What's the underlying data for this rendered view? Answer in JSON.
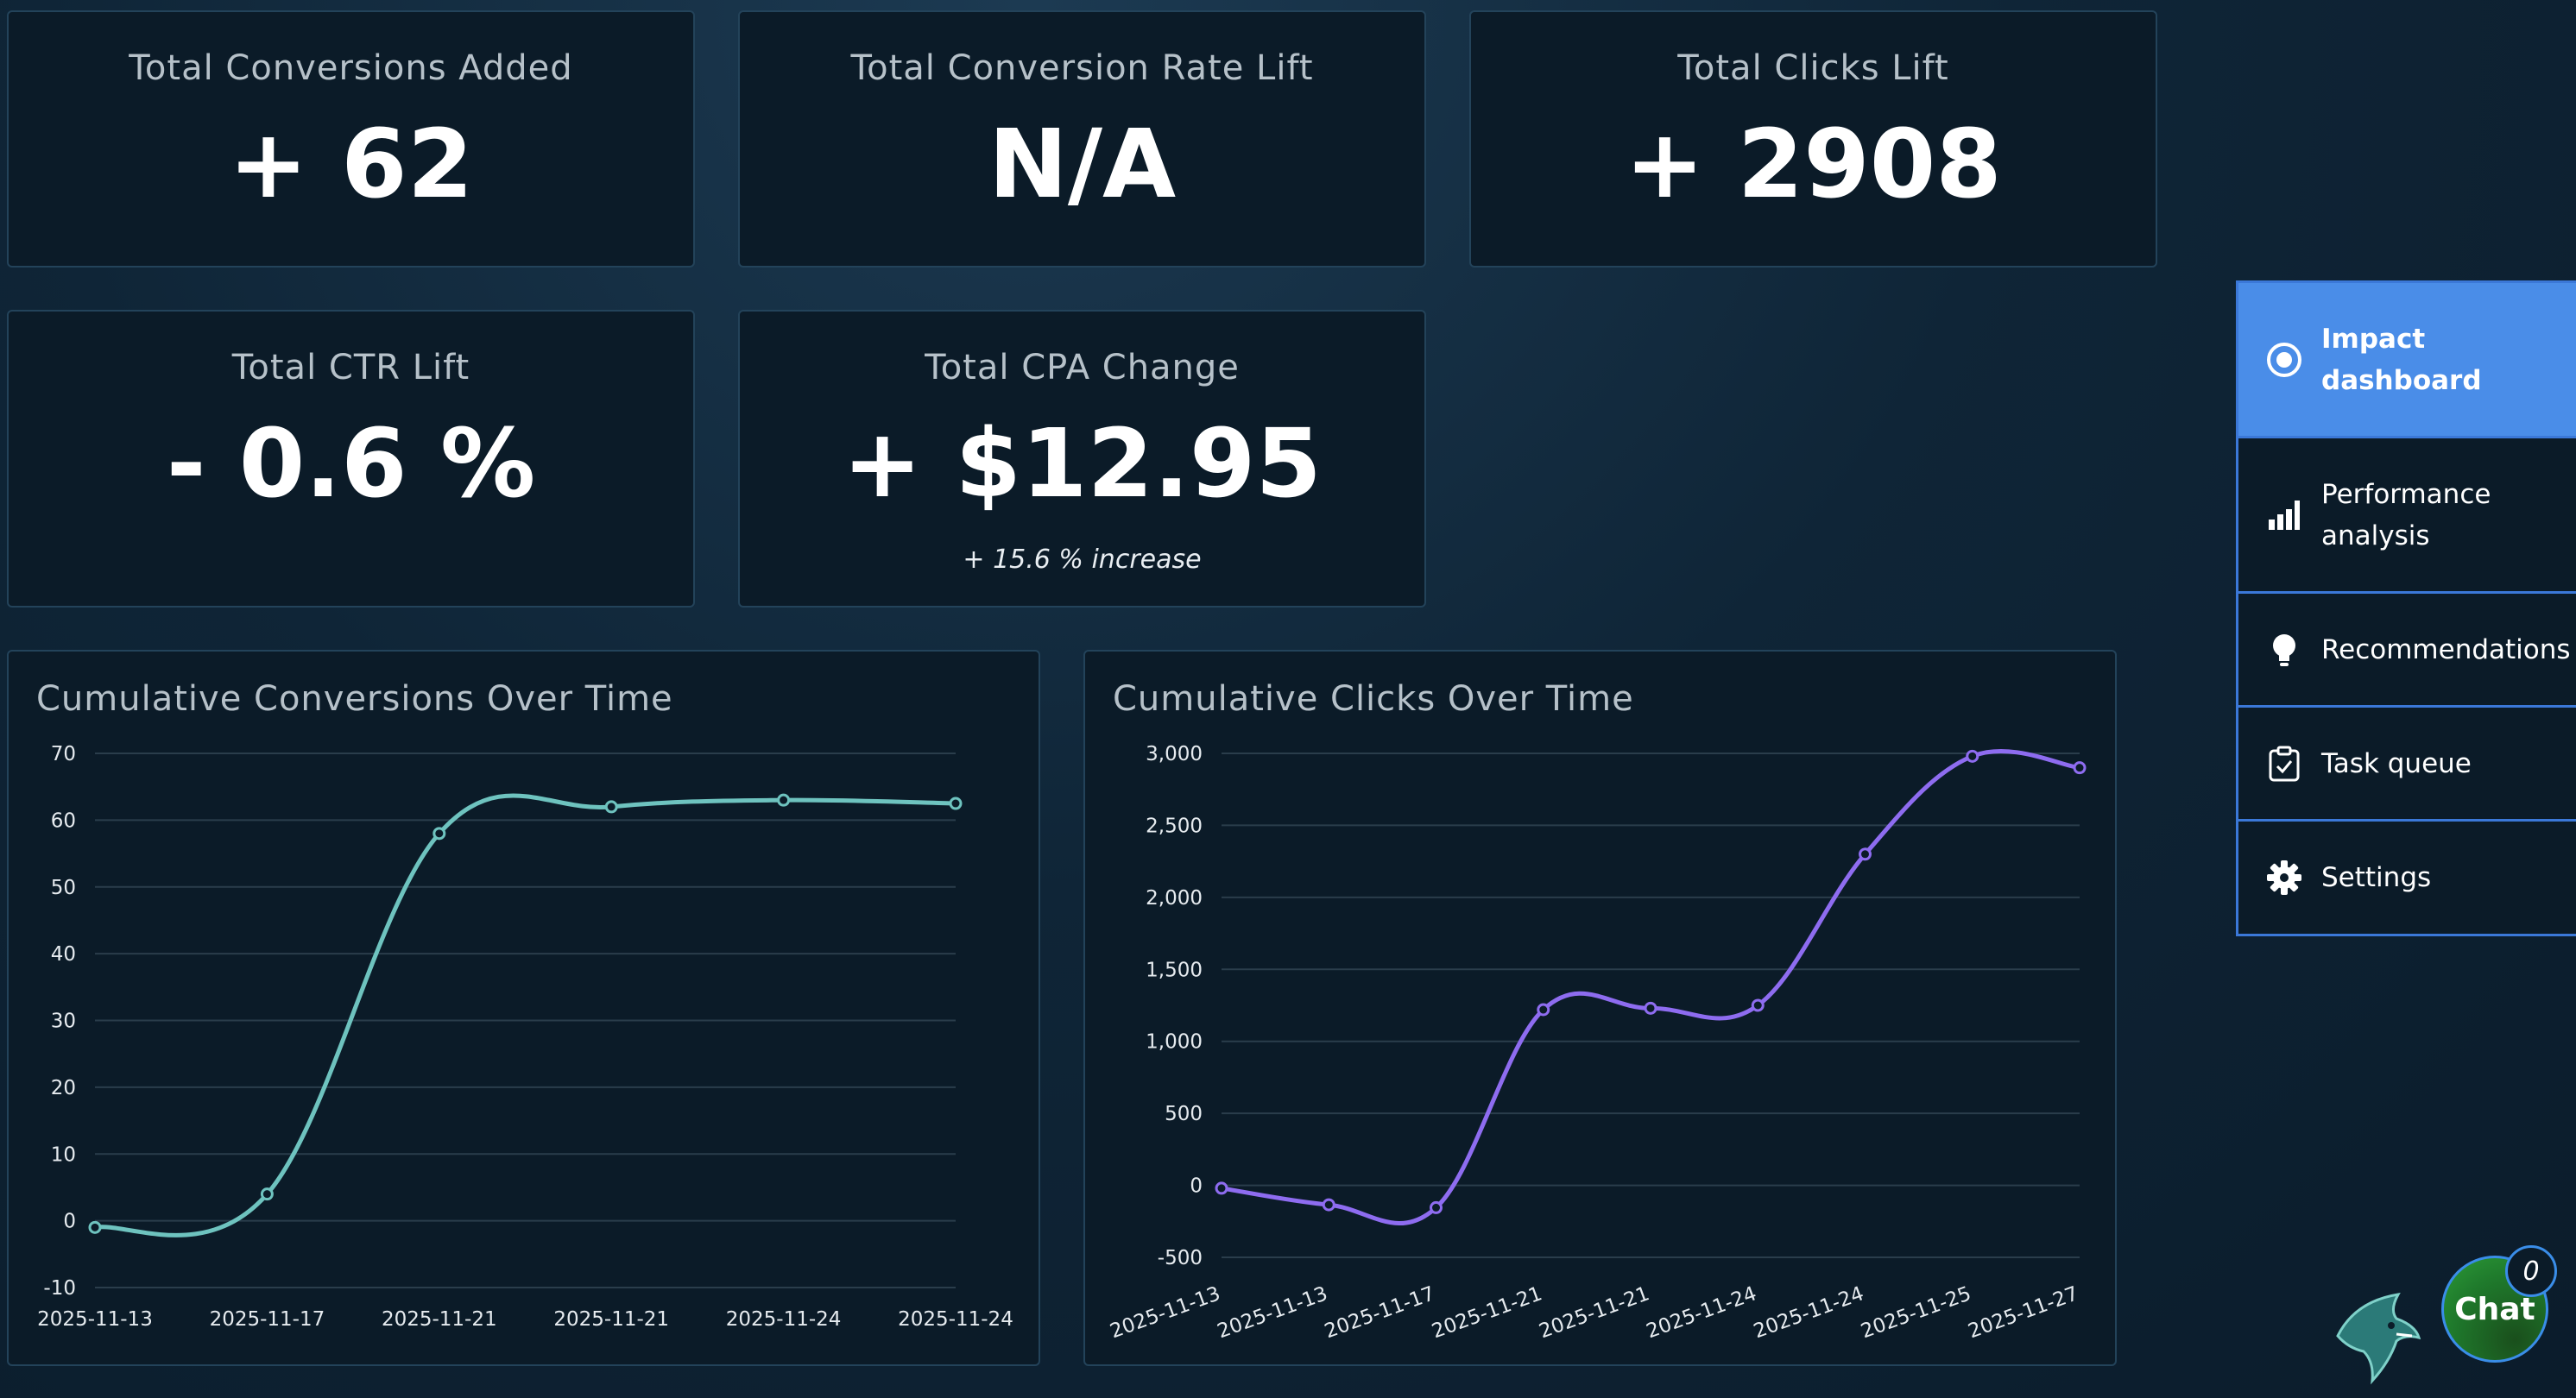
{
  "kpis": {
    "conversions_added": {
      "label": "Total Conversions Added",
      "value": "+ 62"
    },
    "conversion_rate_lift": {
      "label": "Total Conversion Rate Lift",
      "value": "N/A"
    },
    "clicks_lift": {
      "label": "Total Clicks Lift",
      "value": "+ 2908"
    },
    "ctr_lift": {
      "label": "Total CTR Lift",
      "value": "- 0.6 %"
    },
    "cpa_change": {
      "label": "Total CPA Change",
      "value": "+ $12.95",
      "sub": "+ 15.6 % increase"
    }
  },
  "nav": {
    "items": [
      {
        "label": "Impact dashboard",
        "icon": "radio-dot-icon",
        "active": true
      },
      {
        "label": "Performance analysis",
        "icon": "bar-chart-icon",
        "active": false
      },
      {
        "label": "Recommendations",
        "icon": "lightbulb-icon",
        "active": false
      },
      {
        "label": "Task queue",
        "icon": "clipboard-check-icon",
        "active": false
      },
      {
        "label": "Settings",
        "icon": "gear-icon",
        "active": false
      }
    ]
  },
  "chat": {
    "label": "Chat",
    "badge": "0"
  },
  "colors": {
    "conversions_line": "#6ec3bf",
    "clicks_line": "#8e6cf0",
    "nav_active": "#4a8de8",
    "nav_border": "#3b78d8"
  },
  "chart_data": [
    {
      "type": "line",
      "title": "Cumulative Conversions Over Time",
      "categories": [
        "2025-11-13",
        "2025-11-17",
        "2025-11-21",
        "2025-11-21",
        "2025-11-24",
        "2025-11-24"
      ],
      "values": [
        -1,
        4,
        58,
        62,
        63,
        62.5
      ],
      "ylim": [
        -10,
        70
      ],
      "yticks": [
        -10,
        0,
        10,
        20,
        30,
        40,
        50,
        60,
        70
      ],
      "ytick_labels": [
        "-10",
        "0",
        "10",
        "20",
        "30",
        "40",
        "50",
        "60",
        "70"
      ],
      "grid": true,
      "color": "#6ec3bf"
    },
    {
      "type": "line",
      "title": "Cumulative Clicks Over Time",
      "categories": [
        "2025-11-13",
        "2025-11-13",
        "2025-11-17",
        "2025-11-21",
        "2025-11-21",
        "2025-11-24",
        "2025-11-24",
        "2025-11-25",
        "2025-11-27"
      ],
      "values": [
        -20,
        -135,
        -155,
        1220,
        1230,
        1250,
        2300,
        2980,
        2900
      ],
      "ylim": [
        -500,
        3000
      ],
      "yticks": [
        -500,
        0,
        500,
        1000,
        1500,
        2000,
        2500,
        3000
      ],
      "ytick_labels": [
        "-500",
        "0",
        "500",
        "1,000",
        "1,500",
        "2,000",
        "2,500",
        "3,000"
      ],
      "grid": true,
      "color": "#8e6cf0"
    }
  ]
}
